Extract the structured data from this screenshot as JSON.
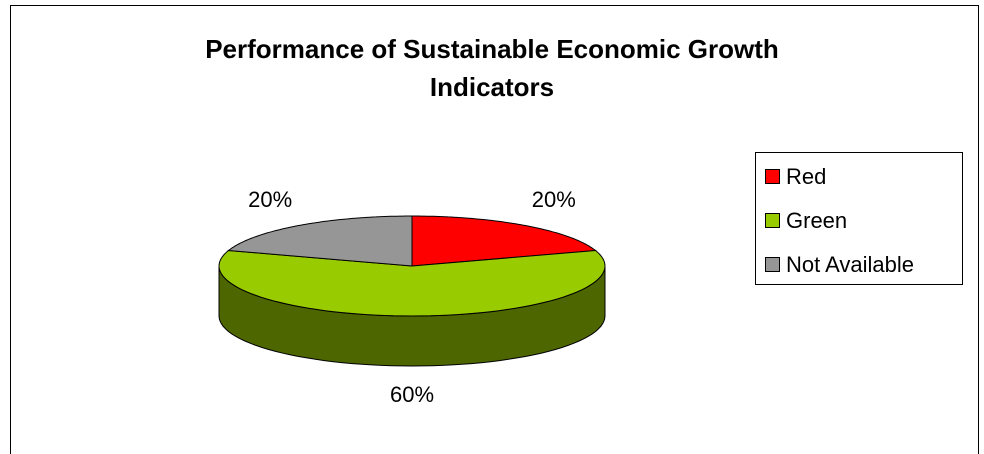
{
  "chart_data": {
    "type": "pie",
    "title": "Performance of Sustainable Economic Growth Indicators",
    "categories": [
      "Red",
      "Green",
      "Not Available"
    ],
    "values": [
      20,
      60,
      20
    ],
    "value_labels": [
      "20%",
      "60%",
      "20%"
    ],
    "colors": [
      "#ff0000",
      "#99cc00",
      "#969696"
    ],
    "legend": "right"
  }
}
